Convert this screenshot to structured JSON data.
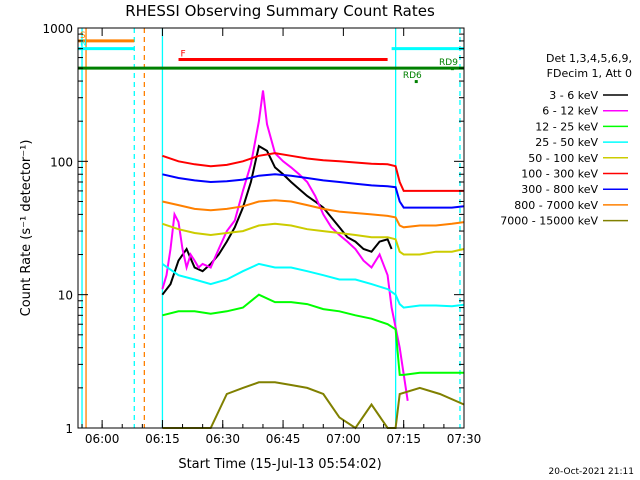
{
  "chart_data": {
    "type": "line",
    "title": "RHESSI Observing Summary Count Rates",
    "xlabel": "Start Time (15-Jul-13 05:54:02)",
    "ylabel": "Count Rate (s⁻¹ detector⁻¹)",
    "y_scale": "log",
    "ylim": [
      1,
      1000
    ],
    "xlim_minutes_after_0554": [
      0,
      96
    ],
    "x_ticks": [
      {
        "label": "06:00",
        "minutes": 6
      },
      {
        "label": "06:15",
        "minutes": 21
      },
      {
        "label": "06:30",
        "minutes": 36
      },
      {
        "label": "06:45",
        "minutes": 51
      },
      {
        "label": "07:00",
        "minutes": 66
      },
      {
        "label": "07:15",
        "minutes": 81
      },
      {
        "label": "07:30",
        "minutes": 96
      }
    ],
    "y_ticks": [
      {
        "label": "1",
        "value": 1
      },
      {
        "label": "10",
        "value": 10
      },
      {
        "label": "100",
        "value": 100
      },
      {
        "label": "1000",
        "value": 1000
      }
    ],
    "legend_header": [
      "Det 1,3,4,5,6,9,",
      "FDecim 1, Att 0"
    ],
    "legend_position": "right",
    "series": [
      {
        "name": "3 - 6 keV",
        "color": "#000000",
        "x": [
          21,
          23,
          25,
          27,
          29,
          31,
          33,
          35,
          37,
          39,
          41,
          43,
          45,
          47,
          49,
          51,
          53,
          55,
          57,
          59,
          61,
          63,
          65,
          67,
          69,
          71,
          73,
          75,
          77,
          78
        ],
        "y": [
          10,
          12,
          18,
          22,
          16,
          15,
          17,
          20,
          25,
          32,
          45,
          70,
          130,
          120,
          90,
          80,
          70,
          62,
          55,
          50,
          45,
          38,
          32,
          27,
          25,
          22,
          21,
          25,
          26,
          22
        ]
      },
      {
        "name": "6 - 12 keV",
        "color": "#ff00ff",
        "x": [
          21,
          22,
          23,
          24,
          25,
          26,
          27,
          28,
          29,
          30,
          31,
          33,
          35,
          37,
          39,
          41,
          43,
          45,
          46,
          47,
          49,
          51,
          53,
          55,
          57,
          59,
          61,
          63,
          65,
          67,
          69,
          71,
          73,
          75,
          77,
          78,
          80,
          82
        ],
        "y": [
          11,
          14,
          22,
          40,
          35,
          22,
          16,
          20,
          18,
          16,
          17,
          16,
          22,
          30,
          36,
          60,
          95,
          200,
          340,
          190,
          115,
          100,
          90,
          80,
          70,
          55,
          40,
          32,
          28,
          25,
          22,
          18,
          16,
          20,
          14,
          8,
          4,
          1.6
        ]
      },
      {
        "name": "12 - 25 keV",
        "color": "#00ff00",
        "x": [
          21,
          25,
          29,
          33,
          37,
          41,
          45,
          49,
          53,
          57,
          61,
          65,
          69,
          73,
          77,
          79,
          80,
          81,
          85,
          89,
          93,
          96
        ],
        "y": [
          7,
          7.5,
          7.5,
          7.2,
          7.5,
          8,
          10,
          8.8,
          8.8,
          8.5,
          7.8,
          7.5,
          7,
          6.6,
          6,
          5.5,
          2.5,
          2.5,
          2.6,
          2.6,
          2.6,
          2.6
        ]
      },
      {
        "name": "25 - 50 keV",
        "color": "#00ffff",
        "x": [
          21,
          25,
          29,
          33,
          37,
          41,
          45,
          49,
          53,
          57,
          61,
          65,
          69,
          73,
          77,
          79,
          80,
          81,
          85,
          89,
          93,
          96
        ],
        "y": [
          17,
          14,
          13,
          12,
          13,
          15,
          17,
          16,
          16,
          15,
          14,
          13,
          13,
          12,
          11,
          10,
          8.5,
          8,
          8.3,
          8.3,
          8.2,
          8.4
        ]
      },
      {
        "name": "50 - 100 keV",
        "color": "#cccc00",
        "x": [
          21,
          25,
          29,
          33,
          37,
          41,
          45,
          49,
          53,
          57,
          61,
          65,
          69,
          73,
          77,
          79,
          80,
          81,
          85,
          89,
          93,
          96
        ],
        "y": [
          34,
          31,
          29,
          28,
          29,
          30,
          33,
          34,
          33,
          31,
          30,
          29,
          28,
          27,
          27,
          26,
          21,
          20,
          20,
          21,
          21,
          22
        ]
      },
      {
        "name": "100 - 300 keV",
        "color": "#ff0000",
        "x": [
          21,
          25,
          29,
          33,
          37,
          41,
          45,
          49,
          53,
          57,
          61,
          65,
          69,
          73,
          77,
          79,
          80,
          81,
          85,
          89,
          93,
          96
        ],
        "y": [
          110,
          100,
          95,
          92,
          94,
          100,
          110,
          115,
          110,
          105,
          102,
          100,
          98,
          96,
          95,
          92,
          70,
          60,
          60,
          60,
          60,
          60
        ]
      },
      {
        "name": "300 - 800 keV",
        "color": "#0000ff",
        "x": [
          21,
          25,
          29,
          33,
          37,
          41,
          45,
          49,
          53,
          57,
          61,
          65,
          69,
          73,
          77,
          79,
          80,
          81,
          85,
          89,
          93,
          96
        ],
        "y": [
          80,
          75,
          72,
          70,
          71,
          73,
          78,
          80,
          78,
          75,
          72,
          70,
          68,
          66,
          65,
          64,
          50,
          45,
          45,
          45,
          45,
          46
        ]
      },
      {
        "name": "800 - 7000 keV",
        "color": "#ff8000",
        "x": [
          21,
          25,
          29,
          33,
          37,
          41,
          45,
          49,
          53,
          57,
          61,
          65,
          69,
          73,
          77,
          79,
          80,
          81,
          85,
          89,
          93,
          96
        ],
        "y": [
          50,
          47,
          44,
          43,
          44,
          46,
          50,
          51,
          50,
          47,
          44,
          42,
          41,
          40,
          39,
          38,
          33,
          32,
          33,
          33,
          34,
          35
        ]
      },
      {
        "name": "7000 - 15000 keV",
        "color": "#808000",
        "x": [
          21,
          33,
          37,
          41,
          45,
          49,
          53,
          57,
          61,
          65,
          69,
          73,
          77,
          79,
          80,
          85,
          90,
          96
        ],
        "y": [
          1,
          1,
          1.8,
          2,
          2.2,
          2.2,
          2.1,
          2,
          1.8,
          1.2,
          1,
          1.5,
          1,
          1,
          1.8,
          2,
          1.8,
          1.5
        ]
      }
    ],
    "flags": [
      {
        "label": "S",
        "color": "#ff8000",
        "x_start": 0,
        "x_end": 14,
        "y": 800
      },
      {
        "label": "N",
        "color": "#00ffff",
        "x_start": 0,
        "x_end": 14,
        "y": 700
      },
      {
        "label": "F",
        "color": "#ff0000",
        "x_start": 25,
        "x_end": 77,
        "y": 580
      },
      {
        "label": "",
        "color": "#008000",
        "x_start": 0,
        "x_end": 96,
        "y": 500
      },
      {
        "label": "",
        "color": "#00ffff",
        "x_start": 78,
        "x_end": 96,
        "y": 700
      },
      {
        "label": "RD6",
        "color": "#008000",
        "x_start": 84,
        "x_end": 84,
        "y": 400
      },
      {
        "label": "RD9",
        "color": "#008000",
        "x_start": 93,
        "x_end": 93,
        "y": 500
      }
    ],
    "vertical_lines": [
      {
        "color": "#00ffff",
        "minutes": 1,
        "style": "solid"
      },
      {
        "color": "#ff8000",
        "minutes": 2,
        "style": "solid"
      },
      {
        "color": "#00ffff",
        "minutes": 14,
        "style": "dashed"
      },
      {
        "color": "#ff8000",
        "minutes": 16.5,
        "style": "dashed"
      },
      {
        "color": "#00ffff",
        "minutes": 21,
        "style": "solid"
      },
      {
        "color": "#00ffff",
        "minutes": 79,
        "style": "solid"
      },
      {
        "color": "#00ffff",
        "minutes": 95,
        "style": "dashed"
      }
    ],
    "timestamp": "20-Oct-2021 21:11"
  }
}
